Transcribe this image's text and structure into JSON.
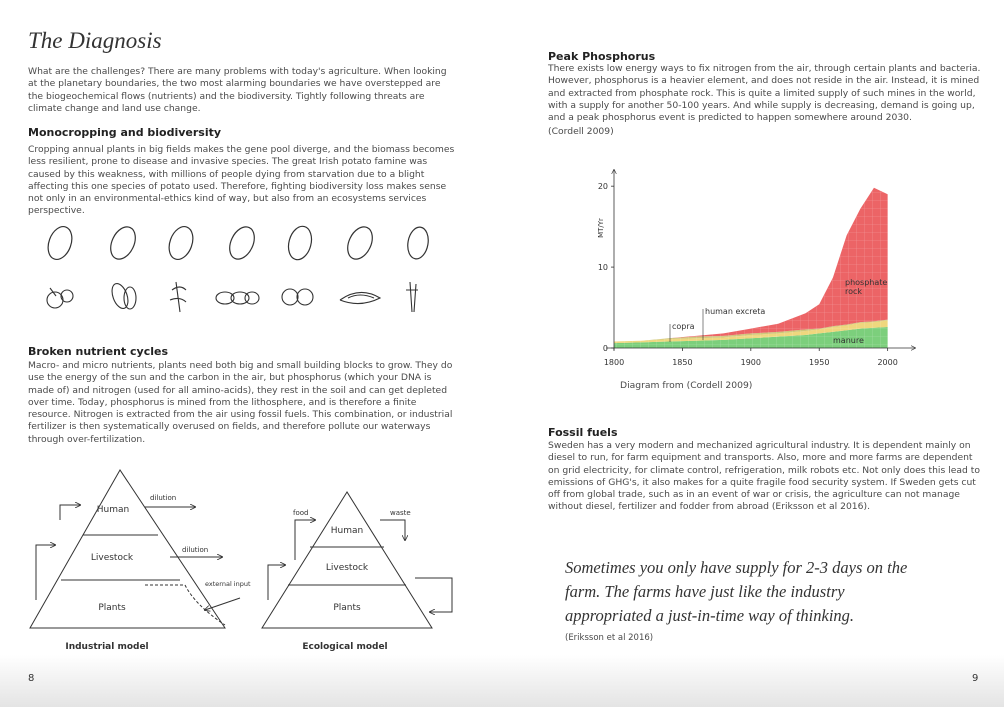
{
  "left_page": {
    "title": "The Diagnosis",
    "intro": "What are the challenges? There are many problems with today's agriculture. When looking at the planetary boundaries, the two most alarming boundaries we have overstepped are the biogeochemical flows (nutrients) and the biodiversity. Tightly following threats are climate change and land use change.",
    "sections": [
      {
        "heading": "Monocropping and biodiversity",
        "text": "Cropping annual plants in big fields makes the gene pool diverge, and the biomass becomes less resilient, prone to disease and invasive species. The great Irish potato famine was caused by this weakness, with millions of people dying from starvation due to a blight affecting this one species of potato used. Therefore, fighting biodiversity loss makes sense not only in an environmental-ethics kind of way, but also from an ecosystems services perspective."
      },
      {
        "heading": "Broken nutrient cycles",
        "text": "Macro- and micro nutrients, plants need both big and small building blocks to grow. They do use the energy of the sun and the carbon in the air, but phosphorus (which your DNA is made of) and nitrogen (used for all amino-acids), they rest in the soil and can get depleted over time. Today, phosphorus is mined from the lithosphere, and is therefore a finite resource. Nitrogen is extracted from the air using fossil fuels. This combination, or industrial fertilizer is then systematically overused on fields, and therefore pollute our waterways through over-fertilization."
      }
    ],
    "diagrams": [
      {
        "caption": "Industrial model",
        "levels": [
          "Human",
          "Livestock",
          "Plants"
        ],
        "flows": [
          "dilution",
          "dilution",
          "external input"
        ]
      },
      {
        "caption": "Ecological model",
        "levels": [
          "Human",
          "Livestock",
          "Plants"
        ],
        "flows": [
          "food",
          "waste"
        ]
      }
    ],
    "page_number": "8"
  },
  "right_page": {
    "sections": [
      {
        "heading": "Peak Phosphorus",
        "text": "There exists low energy ways to fix nitrogen from the air, through certain plants and bacteria. However, phosphorus is a heavier element, and does not reside in the air. Instead, it is mined and extracted from phosphate rock. This is quite a limited supply of such mines in the world, with a supply for another 50-100 years. And while supply is decreasing, demand is going up, and a peak phosphorus event is predicted to happen somewhere around 2030.",
        "citation": "(Cordell 2009)"
      },
      {
        "heading": "Fossil fuels",
        "text": "Sweden has a very modern and mechanized agricultural industry. It is dependent mainly on diesel to run, for farm equipment and transports. Also, more and more farms are dependent on grid electricity, for climate control, refrigeration, milk robots etc. Not only does this lead to emissions of GHG's, it also makes for a quite fragile food security system. If Sweden gets cut off from global trade, such as in an event of war or crisis, the agriculture can not manage without diesel, fertilizer and fodder from abroad (Eriksson et al 2016)."
      }
    ],
    "chart_caption": "Diagram from (Cordell 2009)",
    "quote": "Sometimes you only have supply for 2-3 days on the farm. The farms have just like the industry appropriated a just-in-time way of thinking.",
    "quote_citation": "(Eriksson et al 2016)",
    "page_number": "9"
  },
  "chart_data": {
    "type": "area",
    "stacked": true,
    "y_label": "MT/Yr",
    "x": [
      1800,
      1820,
      1840,
      1860,
      1880,
      1900,
      1920,
      1940,
      1950,
      1960,
      1970,
      1980,
      1990,
      2000
    ],
    "series": [
      {
        "name": "manure",
        "color": "#7ccf7c",
        "values": [
          0.6,
          0.7,
          0.8,
          0.9,
          1.0,
          1.2,
          1.4,
          1.6,
          1.8,
          2.0,
          2.2,
          2.4,
          2.5,
          2.6
        ]
      },
      {
        "name": "human excreta",
        "color": "#efd77e",
        "values": [
          0.2,
          0.2,
          0.3,
          0.3,
          0.3,
          0.4,
          0.4,
          0.5,
          0.5,
          0.6,
          0.6,
          0.7,
          0.7,
          0.8
        ]
      },
      {
        "name": "copra",
        "color": "#cfc77a",
        "values": [
          0,
          0,
          0.1,
          0.2,
          0.2,
          0.2,
          0.2,
          0.2,
          0.1,
          0.1,
          0.1,
          0.1,
          0.1,
          0.1
        ]
      },
      {
        "name": "phosphate rock",
        "color": "#ec6466",
        "values": [
          0,
          0,
          0,
          0.1,
          0.3,
          0.6,
          1.0,
          2.0,
          3.0,
          6.0,
          11.0,
          14.0,
          16.5,
          15.5
        ]
      }
    ],
    "xlim": [
      1800,
      2020
    ],
    "ylim": [
      0,
      22
    ],
    "xticks": [
      1800,
      1850,
      1900,
      1950,
      2000
    ],
    "yticks": [
      0,
      10,
      20
    ]
  }
}
